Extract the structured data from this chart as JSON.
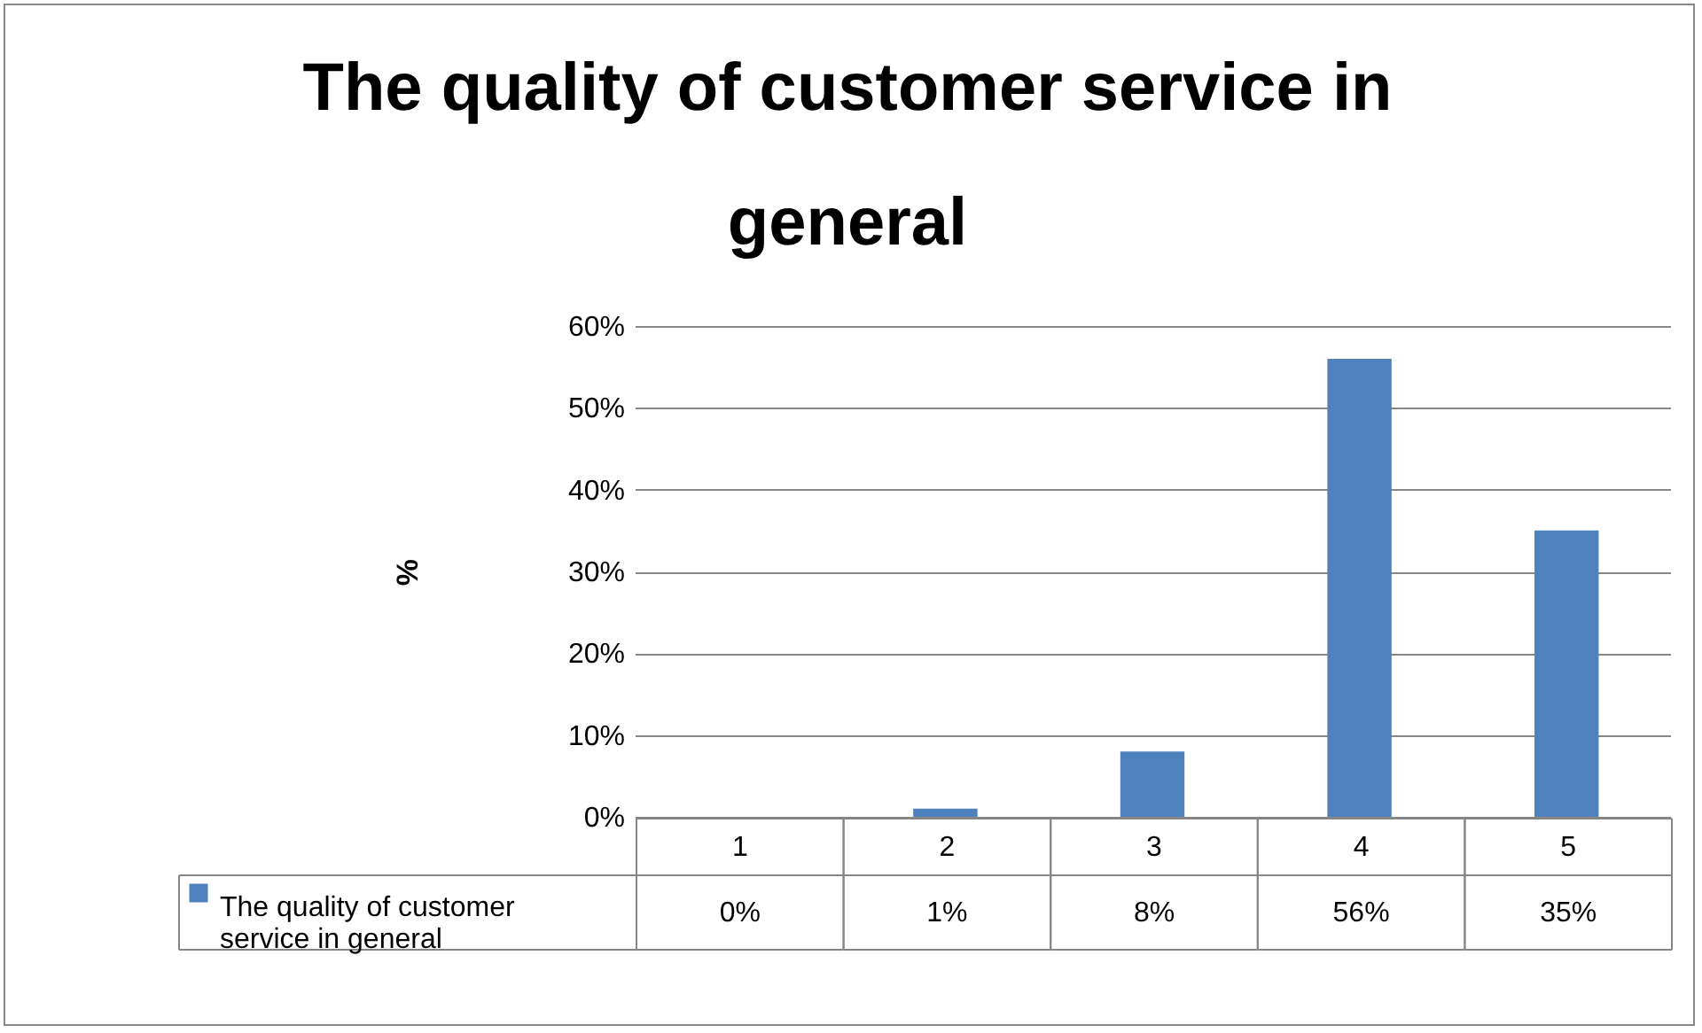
{
  "chart_data": {
    "type": "bar",
    "title": "The quality of customer service in general",
    "ylabel": "%",
    "categories": [
      "1",
      "2",
      "3",
      "4",
      "5"
    ],
    "series": [
      {
        "name": "The quality of customer service in general",
        "color": "#4f81bd",
        "values": [
          0,
          1,
          8,
          56,
          35
        ],
        "value_labels": [
          "0%",
          "1%",
          "8%",
          "56%",
          "35%"
        ]
      }
    ],
    "ylim": [
      0,
      60
    ],
    "yticks": [
      {
        "value": 0,
        "label": "0%"
      },
      {
        "value": 10,
        "label": "10%"
      },
      {
        "value": 20,
        "label": "20%"
      },
      {
        "value": 30,
        "label": "30%"
      },
      {
        "value": 40,
        "label": "40%"
      },
      {
        "value": 50,
        "label": "50%"
      },
      {
        "value": 60,
        "label": "60%"
      }
    ],
    "grid": "y",
    "legend": "bottom"
  }
}
